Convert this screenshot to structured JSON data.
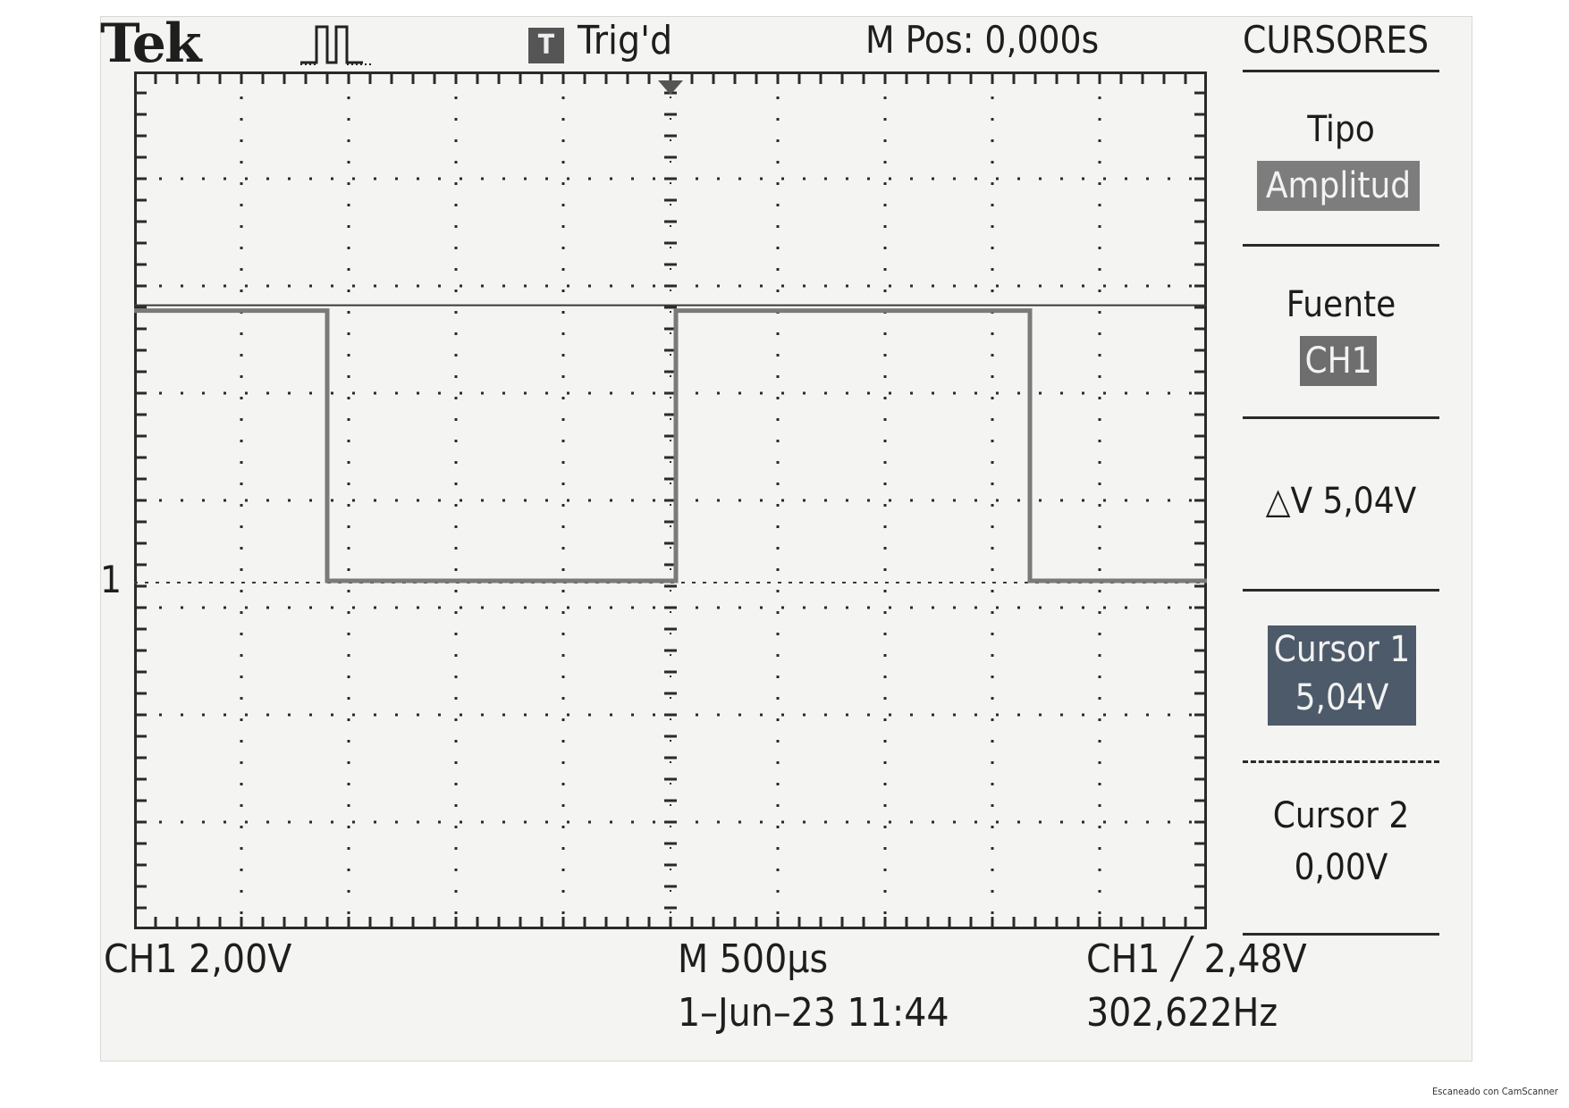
{
  "header": {
    "logo": "Tek",
    "acquisition_icon": "pulse-waveform-icon",
    "trigger_badge": "T",
    "trigger_status": "Trig'd",
    "horizontal_position": "M Pos: 0,000s"
  },
  "menu": {
    "title": "CURSORES",
    "tipo": {
      "label": "Tipo",
      "value": "Amplitud"
    },
    "fuente": {
      "label": "Fuente",
      "value": "CH1"
    },
    "delta": "△V 5,04V",
    "cursor1": {
      "label": "Cursor 1",
      "value": "5,04V"
    },
    "cursor2": {
      "label": "Cursor 2",
      "value": "0,00V"
    }
  },
  "status": {
    "ch1_scale": "CH1  2,00V",
    "timebase": "M 500µs",
    "trigger": "CH1 ╱ 2,48V",
    "datetime": "1–Jun–23 11:44",
    "frequency": "302,622Hz"
  },
  "waveform": {
    "channel_marker": "1",
    "volts_per_div": 2.0,
    "time_per_div_us": 500,
    "high_level_v": 5.04,
    "low_level_v": 0.0,
    "cursor1_v": 5.04,
    "cursor2_v": 0.0,
    "transitions_div": [
      1.8,
      5.05,
      8.35
    ],
    "initial_state": "high",
    "colors": {
      "trace": "#7a7a7a",
      "grid": "#2a2a2a",
      "cursor": "#3a3a3a",
      "highlight": "#4c5a6a"
    }
  },
  "watermark": "Escaneado con CamScanner"
}
